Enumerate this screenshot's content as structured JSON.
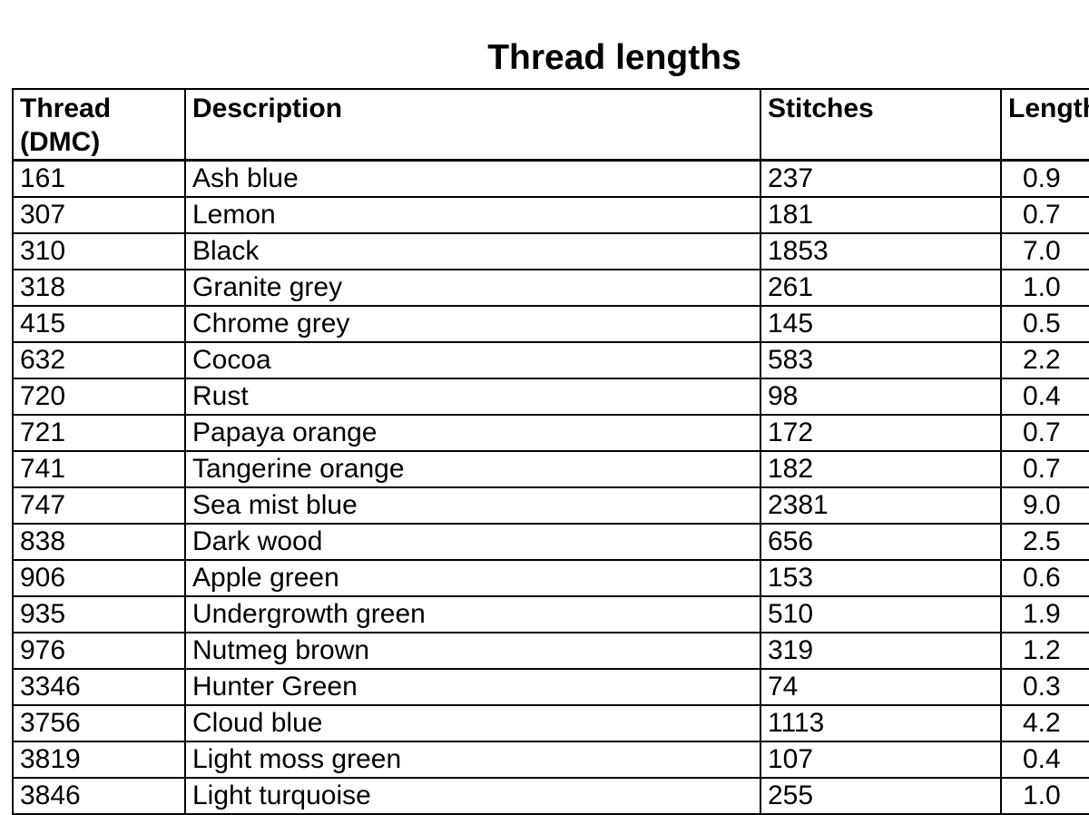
{
  "page": {
    "title": "Thread lengths",
    "background_color": "#ffffff",
    "text_color": "#000000",
    "border_color": "#000000"
  },
  "table": {
    "headers": [
      {
        "key": "thread",
        "label": "Thread (DMC)"
      },
      {
        "key": "description",
        "label": "Description"
      },
      {
        "key": "stitches",
        "label": "Stitches"
      },
      {
        "key": "length",
        "label": "Length (m)"
      }
    ],
    "rows": [
      {
        "thread": "161",
        "description": "Ash blue",
        "stitches": "237",
        "length": "0.9"
      },
      {
        "thread": "307",
        "description": "Lemon",
        "stitches": "181",
        "length": "0.7"
      },
      {
        "thread": "310",
        "description": "Black",
        "stitches": "1853",
        "length": "7.0"
      },
      {
        "thread": "318",
        "description": "Granite grey",
        "stitches": "261",
        "length": "1.0"
      },
      {
        "thread": "415",
        "description": "Chrome grey",
        "stitches": "145",
        "length": "0.5"
      },
      {
        "thread": "632",
        "description": "Cocoa",
        "stitches": "583",
        "length": "2.2"
      },
      {
        "thread": "720",
        "description": "Rust",
        "stitches": "98",
        "length": "0.4"
      },
      {
        "thread": "721",
        "description": "Papaya orange",
        "stitches": "172",
        "length": "0.7"
      },
      {
        "thread": "741",
        "description": "Tangerine orange",
        "stitches": "182",
        "length": "0.7"
      },
      {
        "thread": "747",
        "description": "Sea mist blue",
        "stitches": "2381",
        "length": "9.0"
      },
      {
        "thread": "838",
        "description": "Dark wood",
        "stitches": "656",
        "length": "2.5"
      },
      {
        "thread": "906",
        "description": "Apple green",
        "stitches": "153",
        "length": "0.6"
      },
      {
        "thread": "935",
        "description": "Undergrowth green",
        "stitches": "510",
        "length": "1.9"
      },
      {
        "thread": "976",
        "description": "Nutmeg brown",
        "stitches": "319",
        "length": "1.2"
      },
      {
        "thread": "3346",
        "description": "Hunter Green",
        "stitches": "74",
        "length": "0.3"
      },
      {
        "thread": "3756",
        "description": "Cloud blue",
        "stitches": "1113",
        "length": "4.2"
      },
      {
        "thread": "3819",
        "description": "Light moss green",
        "stitches": "107",
        "length": "0.4"
      },
      {
        "thread": "3846",
        "description": "Light turquoise",
        "stitches": "255",
        "length": "1.0"
      }
    ]
  }
}
